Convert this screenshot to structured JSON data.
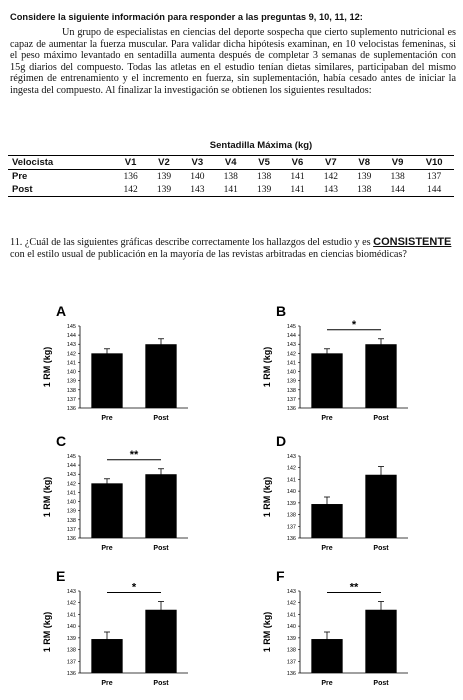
{
  "header": {
    "title": "Considere la siguiente información para responder a las preguntas 9, 10, 11, 12:"
  },
  "paragraph": "Un grupo de especialistas en ciencias del deporte sospecha que cierto suplemento nutricional es capaz de aumentar la fuerza muscular. Para validar dicha hipótesis examinan, en 10 velocistas femeninas, si el peso máximo levantado en sentadilla aumenta después de completar 3 semanas de suplementación con 15g diarios del compuesto. Todas las atletas en el estudio tenían dietas similares, participaban del mismo régimen de entrenamiento y el incremento en fuerza, sin suplementación, había cesado antes de iniciar la ingesta del compuesto. Al finalizar la investigación se obtienen los siguientes resultados:",
  "table": {
    "title": "Sentadilla Máxima (kg)",
    "columns": [
      "Velocista",
      "V1",
      "V2",
      "V3",
      "V4",
      "V5",
      "V6",
      "V7",
      "V8",
      "V9",
      "V10"
    ],
    "rows": [
      [
        "Pre",
        136,
        139,
        140,
        138,
        138,
        141,
        142,
        139,
        138,
        137
      ],
      [
        "Post",
        142,
        139,
        143,
        141,
        139,
        141,
        143,
        138,
        144,
        144
      ]
    ]
  },
  "question": {
    "prefix": "11. ¿Cuál de las siguientes gráficas describe correctamente los hallazgos del estudio y es",
    "emphasis": "CONSISTENTE",
    "suffix": "con el estilo usual de publicación en la mayoría de las revistas arbitradas en ciencias biomédicas?"
  },
  "chart_data": [
    {
      "type": "bar",
      "title": "A",
      "y_label": "1 RM (kg)",
      "categories": [
        "Pre",
        "Post"
      ],
      "values": [
        142,
        143
      ],
      "errors": [
        0.5,
        0.6
      ],
      "color": "#000000",
      "ylim": [
        136,
        145
      ],
      "yticks": [
        136,
        137,
        138,
        139,
        140,
        141,
        142,
        143,
        144,
        145
      ]
    },
    {
      "type": "bar",
      "title": "B",
      "y_label": "1 RM (kg)",
      "categories": [
        "Pre",
        "Post"
      ],
      "values": [
        142,
        143
      ],
      "errors": [
        0.5,
        0.6
      ],
      "color": "#000000",
      "ylim": [
        136,
        145
      ],
      "yticks": [
        136,
        137,
        138,
        139,
        140,
        141,
        142,
        143,
        144,
        145
      ],
      "annotation": "*"
    },
    {
      "type": "bar",
      "title": "C",
      "y_label": "1 RM (kg)",
      "categories": [
        "Pre",
        "Post"
      ],
      "values": [
        142,
        143
      ],
      "errors": [
        0.5,
        0.6
      ],
      "color": "#000000",
      "ylim": [
        136,
        145
      ],
      "yticks": [
        136,
        137,
        138,
        139,
        140,
        141,
        142,
        143,
        144,
        145
      ],
      "annotation": "**"
    },
    {
      "type": "bar",
      "title": "D",
      "y_label": "1 RM (kg)",
      "categories": [
        "Pre",
        "Post"
      ],
      "values": [
        138.9,
        141.4
      ],
      "errors": [
        0.6,
        0.7
      ],
      "color": "#000000",
      "ylim": [
        136,
        143
      ],
      "yticks": [
        136,
        137,
        138,
        139,
        140,
        141,
        142,
        143
      ]
    },
    {
      "type": "bar",
      "title": "E",
      "y_label": "1 RM (kg)",
      "categories": [
        "Pre",
        "Post"
      ],
      "values": [
        138.9,
        141.4
      ],
      "errors": [
        0.6,
        0.7
      ],
      "color": "#000000",
      "ylim": [
        136,
        143
      ],
      "yticks": [
        136,
        137,
        138,
        139,
        140,
        141,
        142,
        143
      ],
      "annotation": "*"
    },
    {
      "type": "bar",
      "title": "F",
      "y_label": "1 RM (kg)",
      "categories": [
        "Pre",
        "Post"
      ],
      "values": [
        138.9,
        141.4
      ],
      "errors": [
        0.6,
        0.7
      ],
      "color": "#000000",
      "ylim": [
        136,
        143
      ],
      "yticks": [
        136,
        137,
        138,
        139,
        140,
        141,
        142,
        143
      ],
      "annotation": "**"
    }
  ]
}
